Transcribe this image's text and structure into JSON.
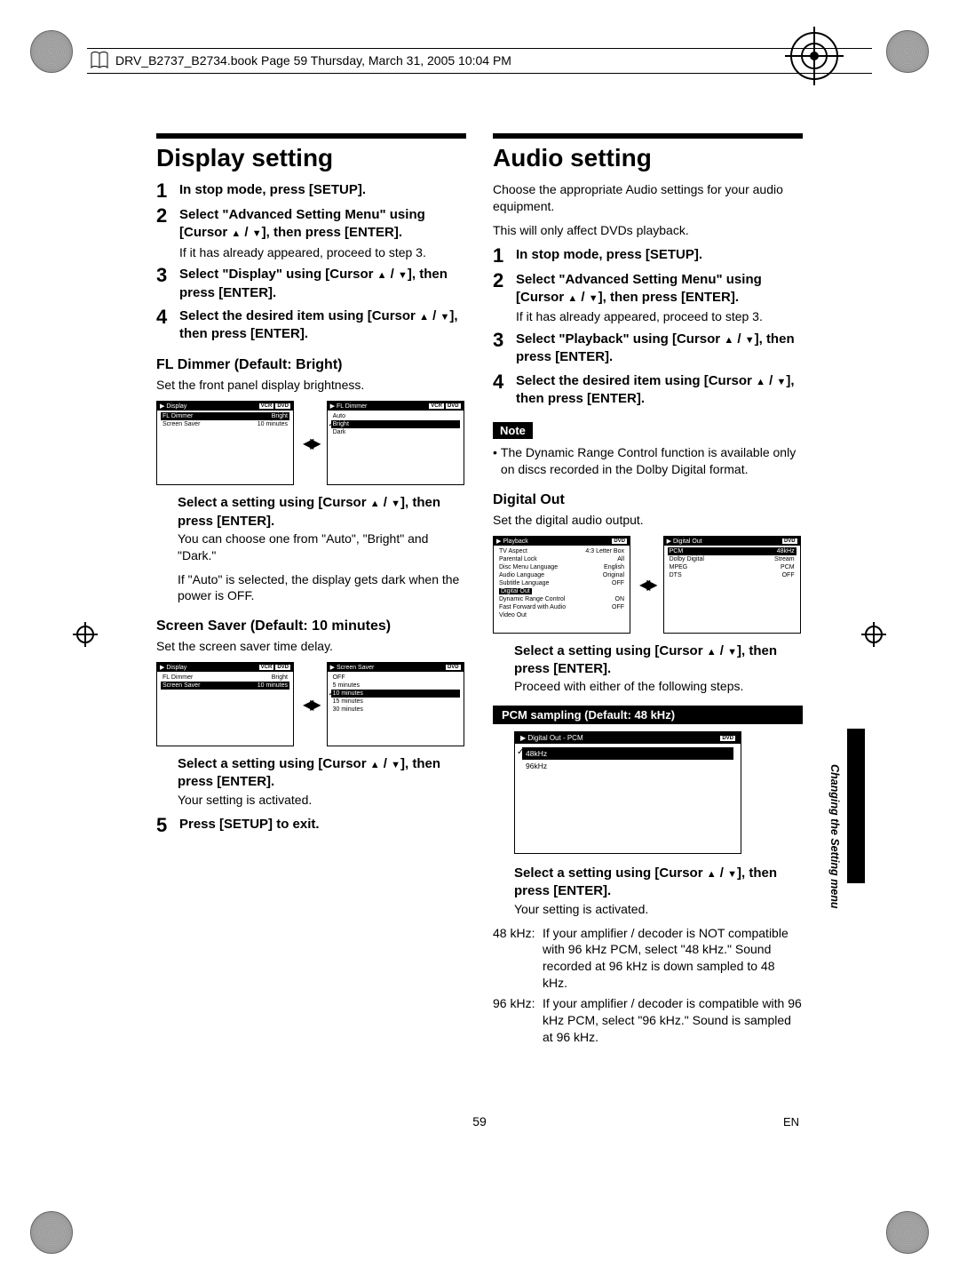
{
  "header": {
    "text": "DRV_B2737_B2734.book  Page 59  Thursday, March 31, 2005  10:04 PM"
  },
  "page": {
    "number": "59",
    "lang": "EN",
    "side_label": "Changing the Setting menu"
  },
  "left": {
    "title": "Display setting",
    "steps": {
      "s1": "In stop mode, press [SETUP].",
      "s2a": "Select \"Advanced Setting Menu\" using [Cursor ",
      "s2b": "], then press [ENTER].",
      "s2_sub": "If it has already appeared, proceed to step 3.",
      "s3a": "Select \"Display\" using [Cursor ",
      "s3b": "], then press [ENTER].",
      "s4a": "Select the desired item using [Cursor ",
      "s4b": "], then press [ENTER].",
      "s5": "Press [SETUP] to exit."
    },
    "fl_dimmer": {
      "heading": "FL Dimmer (Default: Bright)",
      "desc": "Set the front panel display brightness.",
      "menu1": {
        "title": "Display",
        "badges": [
          "VCR",
          "DVD"
        ],
        "rows": [
          {
            "l": "FL Dimmer",
            "r": "Bright",
            "hl_l": true,
            "hl_r": true
          },
          {
            "l": "Screen Saver",
            "r": "10 minutes"
          }
        ]
      },
      "menu2": {
        "title": "FL Dimmer",
        "badges": [
          "VCR",
          "DVD"
        ],
        "rows": [
          {
            "l": "Auto"
          },
          {
            "l": "Bright",
            "hl": true,
            "check": true
          },
          {
            "l": "Dark"
          }
        ]
      },
      "select_line_a": "Select a setting using [Cursor ",
      "select_line_b": "], then press [ENTER].",
      "desc2a": "You can choose one from \"Auto\", \"Bright\" and \"Dark.\"",
      "desc2b": "If \"Auto\" is selected, the display gets dark when the power is OFF."
    },
    "screen_saver": {
      "heading": "Screen Saver (Default: 10 minutes)",
      "desc": "Set the screen saver time delay.",
      "menu1": {
        "title": "Display",
        "badges": [
          "VCR",
          "DVD"
        ],
        "rows": [
          {
            "l": "FL Dimmer",
            "r": "Bright"
          },
          {
            "l": "Screen Saver",
            "r": "10 minutes",
            "hl_l": true,
            "hl_r": true
          }
        ]
      },
      "menu2": {
        "title": "Screen Saver",
        "badges": [
          "DVD"
        ],
        "rows": [
          {
            "l": "OFF"
          },
          {
            "l": "5 minutes"
          },
          {
            "l": "10 minutes",
            "hl": true,
            "check": true
          },
          {
            "l": "15 minutes"
          },
          {
            "l": "30 minutes"
          }
        ]
      },
      "select_line_a": "Select a setting using [Cursor ",
      "select_line_b": "], then press [ENTER].",
      "desc2": "Your setting is activated."
    }
  },
  "right": {
    "title": "Audio setting",
    "intro1": "Choose the appropriate Audio settings for your audio equipment.",
    "intro2": "This will only affect DVDs playback.",
    "steps": {
      "s1": "In stop mode, press [SETUP].",
      "s2a": "Select \"Advanced Setting Menu\" using [Cursor ",
      "s2b": "], then press [ENTER].",
      "s2_sub": "If it has already appeared, proceed to step 3.",
      "s3a": "Select \"Playback\" using [Cursor ",
      "s3b": "], then press [ENTER].",
      "s4a": "Select the desired item using [Cursor ",
      "s4b": "], then press [ENTER]."
    },
    "note_label": "Note",
    "note_text": "The Dynamic Range Control function is available only on discs recorded in the Dolby Digital format.",
    "digital_out": {
      "heading": "Digital Out",
      "desc": "Set the digital audio output.",
      "menu1": {
        "title": "Playback",
        "badges": [
          "DVD"
        ],
        "rows": [
          {
            "l": "TV Aspect",
            "r": "4:3 Letter Box"
          },
          {
            "l": "Parental Lock",
            "r": "All"
          },
          {
            "l": "Disc Menu Language",
            "r": "English"
          },
          {
            "l": "Audio Language",
            "r": "Original"
          },
          {
            "l": "Subtitle Language",
            "r": "OFF"
          },
          {
            "l": "Digital Out",
            "r": "",
            "hl_l": true
          },
          {
            "l": "Dynamic Range Control",
            "r": "ON"
          },
          {
            "l": "Fast Forward with Audio",
            "r": "OFF"
          },
          {
            "l": "Video Out",
            "r": ""
          }
        ]
      },
      "menu2": {
        "title": "Digital Out",
        "badges": [
          "DVD"
        ],
        "rows": [
          {
            "l": "PCM",
            "r": "48kHz",
            "hl_l": true,
            "hl_r": true
          },
          {
            "l": "Dolby Digital",
            "r": "Stream"
          },
          {
            "l": "MPEG",
            "r": "PCM"
          },
          {
            "l": "DTS",
            "r": "OFF"
          }
        ]
      },
      "select_line_a": "Select a setting using [Cursor ",
      "select_line_b": "], then press [ENTER].",
      "desc2": "Proceed with either of the following steps."
    },
    "pcm": {
      "bar": "PCM sampling (Default: 48 kHz)",
      "menu": {
        "title": "Digital Out - PCM",
        "badges": [
          "DVD"
        ],
        "rows": [
          {
            "l": "48kHz",
            "hl": true,
            "check": true
          },
          {
            "l": "96kHz"
          }
        ]
      },
      "select_line_a": "Select a setting using [Cursor ",
      "select_line_b": "], then press [ENTER].",
      "desc2": "Your setting is activated.",
      "freq48_label": "48 kHz:",
      "freq48": "If your amplifier / decoder is NOT compatible with 96 kHz PCM, select \"48 kHz.\" Sound recorded at 96 kHz is down sampled to 48 kHz.",
      "freq96_label": "96 kHz:",
      "freq96": "If your amplifier / decoder is compatible with 96 kHz PCM, select \"96 kHz.\" Sound is sampled at 96 kHz."
    }
  }
}
